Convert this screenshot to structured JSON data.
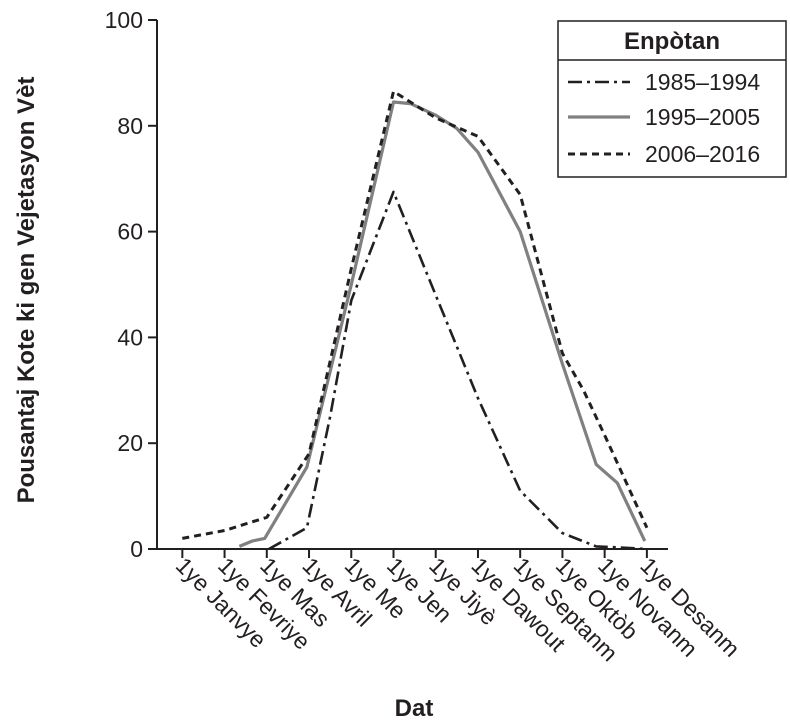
{
  "chart_data": {
    "type": "line",
    "xlabel": "Dat",
    "ylabel": "Pousantaj Kote ki gen Vejetasyon Vèt",
    "categories": [
      "1ye Janvye",
      "1ye Fevriye",
      "1ye Mas",
      "1ye Avril",
      "1ye Me",
      "1ye Jen",
      "1ye Jiyè",
      "1ye Dawout",
      "1ye Septanm",
      "1ye Oktòb",
      "1ye Novanm",
      "1ye Desanm"
    ],
    "x_positions": [
      1,
      2,
      3,
      4,
      5,
      6,
      7,
      8,
      9,
      10,
      11,
      12
    ],
    "xlim": [
      0.4,
      12.5
    ],
    "ylim": [
      0,
      100
    ],
    "yticks": [
      0,
      20,
      40,
      60,
      80,
      100
    ],
    "legend": {
      "title": "Enpòtan",
      "position": "top-right"
    },
    "series": [
      {
        "name": "1985–1994",
        "style": "dash-dot",
        "color": "#231f20",
        "x": [
          3.05,
          3.95,
          4.5,
          5.0,
          6.0,
          7.0,
          8.0,
          9.0,
          10.0,
          10.8,
          11.3,
          12.0
        ],
        "y": [
          0,
          4,
          25,
          47,
          67.5,
          48,
          28.5,
          11,
          3,
          0.5,
          0.3,
          0
        ]
      },
      {
        "name": "1995–2005",
        "style": "solid",
        "color": "#808080",
        "x": [
          2.35,
          2.65,
          2.95,
          3.95,
          5.0,
          6.0,
          6.4,
          7.0,
          7.5,
          8.0,
          9.0,
          10.0,
          10.8,
          11.3,
          11.95
        ],
        "y": [
          0.5,
          1.5,
          2,
          15.5,
          50,
          84.5,
          84.2,
          82,
          79.5,
          75,
          60,
          35,
          16,
          12.5,
          1.5
        ]
      },
      {
        "name": "2006–2016",
        "style": "dotted",
        "color": "#231f20",
        "x": [
          1.0,
          2.0,
          3.0,
          4.0,
          5.0,
          6.0,
          7.0,
          8.0,
          9.0,
          10.0,
          10.5,
          11.0,
          12.0
        ],
        "y": [
          2,
          3.5,
          6,
          18,
          53,
          86.5,
          81.5,
          78,
          67,
          37,
          30,
          21.5,
          4
        ]
      }
    ]
  }
}
